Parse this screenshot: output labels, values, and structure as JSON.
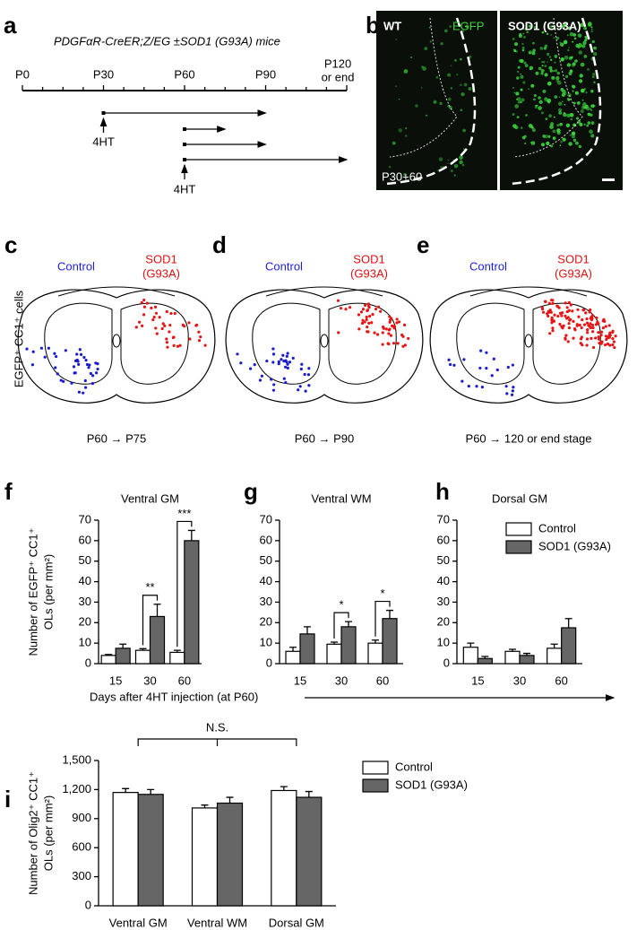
{
  "panel_a": {
    "letter": "a",
    "title": "PDGFαR-CreER;Z/EG ±SOD1 (G93A) mice",
    "timeline_labels": [
      "P0",
      "P30",
      "P60",
      "P90"
    ],
    "end_label": [
      "P120",
      "or end"
    ],
    "injection_label": "4HT"
  },
  "panel_b": {
    "letter": "b",
    "left_label": "WT",
    "channel_label": "EGFP",
    "right_label": "SOD1 (G93A)",
    "time_label": "P30+60"
  },
  "diagram_panels": [
    {
      "letter": "c",
      "control_label": "Control",
      "sod_label": [
        "SOD1",
        "(G93A)"
      ],
      "caption": "P60 → P75",
      "y_label": "EGFP⁺ CC1⁺ cells"
    },
    {
      "letter": "d",
      "control_label": "Control",
      "sod_label": [
        "SOD1",
        "(G93A)"
      ],
      "caption": "P60 → P90"
    },
    {
      "letter": "e",
      "control_label": "Control",
      "sod_label": [
        "SOD1",
        "(G93A)"
      ],
      "caption": "P60 → 120 or end stage"
    }
  ],
  "chart_data": [
    {
      "type": "bar",
      "panel_letter": "f",
      "title": "Ventral GM",
      "y_label": [
        "Number of EGFP⁺ CC1⁺",
        "OLs (per mm²)"
      ],
      "x_label": "Days after 4HT injection (at P60)",
      "categories": [
        15,
        30,
        60
      ],
      "ylim": [
        0,
        70
      ],
      "yticks": [
        0,
        10,
        20,
        30,
        40,
        50,
        60,
        70
      ],
      "series": [
        {
          "name": "Control",
          "color": "#ffffff",
          "values": [
            4,
            6.5,
            5.5
          ],
          "errors": [
            0.5,
            0.8,
            1
          ]
        },
        {
          "name": "SOD1 (G93A)",
          "color": "#666666",
          "values": [
            7.5,
            23,
            60
          ],
          "errors": [
            2,
            6,
            5
          ]
        }
      ],
      "annotations": [
        {
          "text": "**",
          "category": 1
        },
        {
          "text": "***",
          "category": 2
        }
      ]
    },
    {
      "type": "bar",
      "panel_letter": "g",
      "title": "Ventral WM",
      "categories": [
        15,
        30,
        60
      ],
      "ylim": [
        0,
        70
      ],
      "yticks": [
        0,
        10,
        20,
        30,
        40,
        50,
        60,
        70
      ],
      "series": [
        {
          "name": "Control",
          "color": "#ffffff",
          "values": [
            6,
            9.5,
            10
          ],
          "errors": [
            2,
            1,
            1.5
          ]
        },
        {
          "name": "SOD1 (G93A)",
          "color": "#666666",
          "values": [
            14.5,
            18,
            22
          ],
          "errors": [
            3.5,
            2.5,
            4
          ]
        }
      ],
      "annotations": [
        {
          "text": "*",
          "category": 1
        },
        {
          "text": "*",
          "category": 2
        }
      ]
    },
    {
      "type": "bar",
      "panel_letter": "h",
      "title": "Dorsal GM",
      "legend": "upper right",
      "categories": [
        15,
        30,
        60
      ],
      "ylim": [
        0,
        70
      ],
      "yticks": [
        0,
        10,
        20,
        30,
        40,
        50,
        60,
        70
      ],
      "series": [
        {
          "name": "Control",
          "color": "#ffffff",
          "values": [
            8,
            6,
            7.5
          ],
          "errors": [
            2,
            1,
            2
          ]
        },
        {
          "name": "SOD1 (G93A)",
          "color": "#666666",
          "values": [
            2.5,
            4,
            17.5
          ],
          "errors": [
            1,
            1,
            4.5
          ]
        }
      ]
    },
    {
      "type": "bar",
      "panel_letter": "i",
      "y_label": [
        "Number of Olig2⁺ CC1⁺",
        "OLs (per mm²)"
      ],
      "legend": "right",
      "categories": [
        "Ventral GM",
        "Ventral WM",
        "Dorsal GM"
      ],
      "ylim": [
        0,
        1500
      ],
      "yticks": [
        0,
        300,
        600,
        900,
        {
          "value": 1200,
          "label": "1,200"
        },
        {
          "value": 1500,
          "label": "1,500"
        }
      ],
      "series": [
        {
          "name": "Control",
          "color": "#ffffff",
          "values": [
            1170,
            1010,
            1190
          ],
          "errors": [
            40,
            30,
            40
          ]
        },
        {
          "name": "SOD1 (G93A)",
          "color": "#666666",
          "values": [
            1150,
            1060,
            1120
          ],
          "errors": [
            50,
            60,
            60
          ]
        }
      ],
      "annotations": [
        {
          "text": "N.S."
        }
      ]
    }
  ]
}
